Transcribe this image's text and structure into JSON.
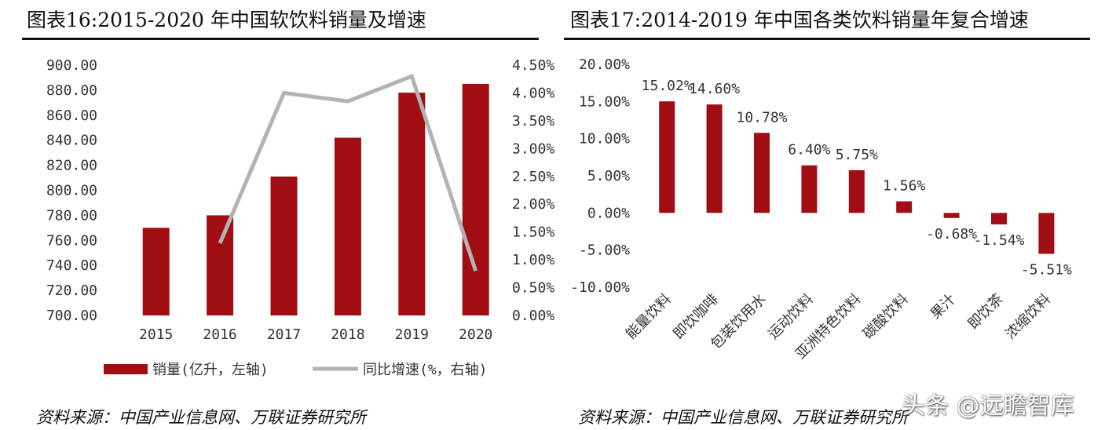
{
  "chart_data": [
    {
      "type": "bar+line",
      "title": "图表16:2015-2020 年中国软饮料销量及增速",
      "categories": [
        "2015",
        "2016",
        "2017",
        "2018",
        "2019",
        "2020"
      ],
      "series": [
        {
          "name": "销量(亿升，左轴)",
          "kind": "bar",
          "axis": "left",
          "color": "#a00d12",
          "values": [
            770,
            780,
            811,
            842,
            878,
            885
          ]
        },
        {
          "name": "同比增速(%，右轴)",
          "kind": "line",
          "axis": "right",
          "color": "#b3b3b3",
          "values": [
            null,
            1.3,
            4.0,
            3.85,
            4.3,
            0.8
          ]
        }
      ],
      "left_axis": {
        "min": 700,
        "max": 900,
        "step": 20,
        "ticks": [
          "700.00",
          "720.00",
          "740.00",
          "760.00",
          "780.00",
          "800.00",
          "820.00",
          "840.00",
          "860.00",
          "880.00",
          "900.00"
        ]
      },
      "right_axis": {
        "min": 0,
        "max": 4.5,
        "step": 0.5,
        "ticks": [
          "0.00%",
          "0.50%",
          "1.00%",
          "1.50%",
          "2.00%",
          "2.50%",
          "3.00%",
          "3.50%",
          "4.00%",
          "4.50%"
        ]
      },
      "legend": [
        {
          "label": "销量(亿升，左轴)",
          "color": "#a00d12",
          "shape": "bar"
        },
        {
          "label": "同比增速(%，右轴)",
          "color": "#b3b3b3",
          "shape": "line"
        }
      ],
      "legend_position": "bottom",
      "source": "资料来源：中国产业信息网、万联证券研究所"
    },
    {
      "type": "bar",
      "title": "图表17:2014-2019 年中国各类饮料销量年复合增速",
      "categories": [
        "能量饮料",
        "即饮咖啡",
        "包装饮用水",
        "运动饮料",
        "亚洲特色饮料",
        "碳酸饮料",
        "果汁",
        "即饮茶",
        "浓缩饮料"
      ],
      "values": [
        15.02,
        14.6,
        10.78,
        6.4,
        5.75,
        1.56,
        -0.68,
        -1.54,
        -5.51
      ],
      "data_labels": [
        "15.02%",
        "14.60%",
        "10.78%",
        "6.40%",
        "5.75%",
        "1.56%",
        "-0.68%",
        "-1.54%",
        "-5.51%"
      ],
      "color": "#a00d12",
      "ylim": [
        -10,
        20
      ],
      "ticks": [
        "-10.00%",
        "-5.00%",
        "0.00%",
        "5.00%",
        "10.00%",
        "15.00%",
        "20.00%"
      ],
      "source": "资料来源：中国产业信息网、万联证券研究所"
    }
  ],
  "watermark": "头条 @远瞻智库"
}
